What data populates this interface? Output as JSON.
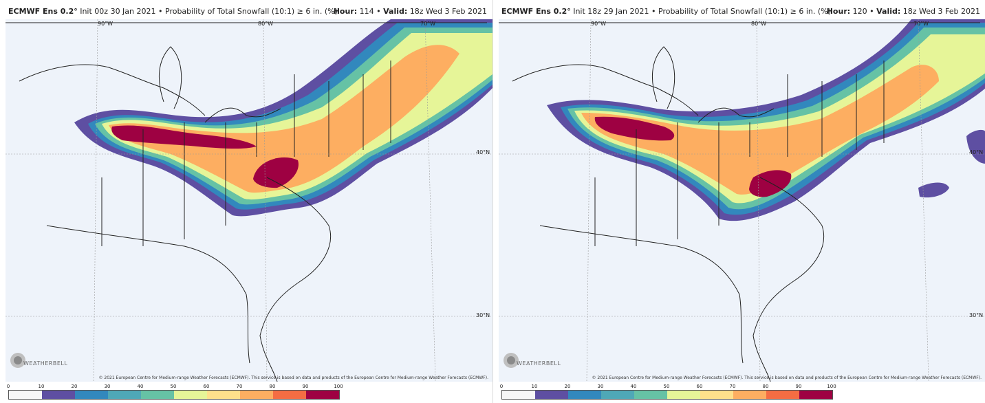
{
  "panels": [
    {
      "model": "ECMWF Ens 0.2°",
      "init_label": "Init 00z 30 Jan 2021",
      "product": "Probability of Total Snowfall (10:1) ≥ 6 in. (%)",
      "hour_label": "Hour:",
      "hour_value": "114",
      "valid_label": "Valid:",
      "valid_value": "18z Wed 3 Feb 2021"
    },
    {
      "model": "ECMWF Ens 0.2°",
      "init_label": "Init 18z 29 Jan 2021",
      "product": "Probability of Total Snowfall (10:1) ≥ 6 in. (%)",
      "hour_label": "Hour:",
      "hour_value": "120",
      "valid_label": "Valid:",
      "valid_value": "18z Wed 3 Feb 2021"
    }
  ],
  "gridlines": {
    "lon": [
      "90°W",
      "80°W",
      "70°W"
    ],
    "lat": [
      "40°N",
      "30°N"
    ]
  },
  "logo_text": "WEATHERBELL",
  "credit": "© 2021 European Centre for Medium-range Weather Forecasts (ECMWF). This service is based on data and products of the European Centre for Medium-range Weather Forecasts (ECMWF).",
  "colorbar": {
    "ticks": [
      "0",
      "10",
      "20",
      "30",
      "40",
      "50",
      "60",
      "70",
      "80",
      "90",
      "100"
    ],
    "colors": [
      "#f7f7f7",
      "#5e4fa2",
      "#3288bd",
      "#4fa8b7",
      "#66c2a5",
      "#abdda4",
      "#e6f598",
      "#fee08b",
      "#fdae61",
      "#f46d43",
      "#9e0142"
    ]
  }
}
